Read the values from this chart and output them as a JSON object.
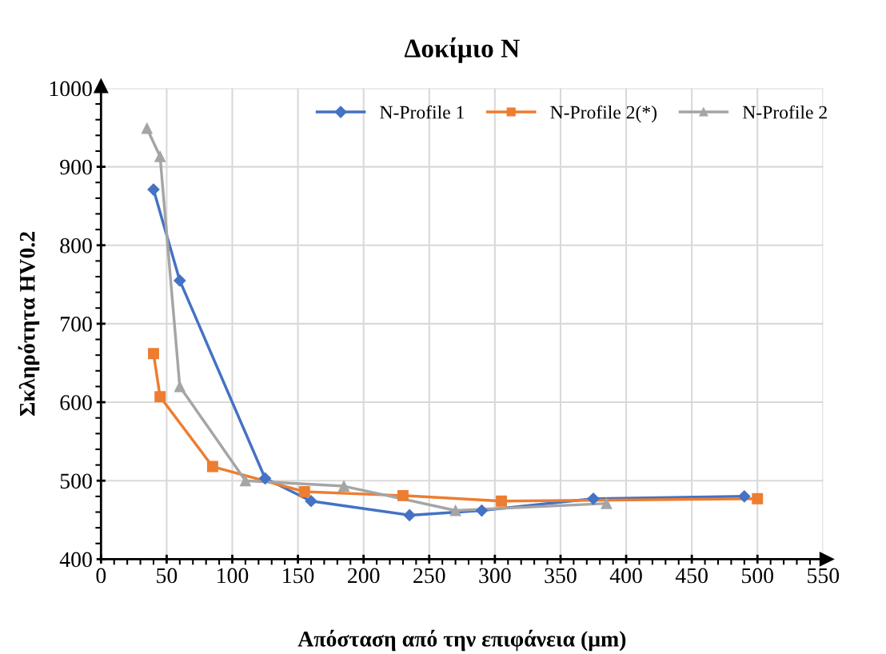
{
  "chart_data": {
    "type": "line",
    "title": "Δοκίμιο N",
    "xlabel": "Απόσταση από την επιφάνεια (μm)",
    "ylabel": "Σκληρότητα HV0.2",
    "xlim": [
      0,
      550
    ],
    "xticks": [
      0,
      50,
      100,
      150,
      200,
      250,
      300,
      350,
      400,
      450,
      500,
      550
    ],
    "ylim": [
      400,
      1000
    ],
    "yticks": [
      400,
      500,
      600,
      700,
      800,
      900,
      1000
    ],
    "grid": true,
    "legend": "top right",
    "line_style": "solid",
    "series": [
      {
        "name": "N-Profile 1",
        "color": "#4472c4",
        "marker": "diamond",
        "x": [
          40,
          60,
          125,
          160,
          235,
          290,
          375,
          490
        ],
        "values": [
          871,
          755,
          503,
          474,
          456,
          462,
          477,
          480
        ]
      },
      {
        "name": "N-Profile 2(*)",
        "color": "#ed7d31",
        "marker": "square",
        "x": [
          40,
          45,
          85,
          155,
          230,
          305,
          500
        ],
        "values": [
          662,
          607,
          518,
          486,
          481,
          474,
          477
        ]
      },
      {
        "name": "N-Profile 2",
        "color": "#a5a5a5",
        "marker": "triangle",
        "x": [
          35,
          45,
          60,
          110,
          185,
          270,
          385
        ],
        "values": [
          949,
          913,
          620,
          500,
          493,
          462,
          471
        ]
      }
    ]
  }
}
